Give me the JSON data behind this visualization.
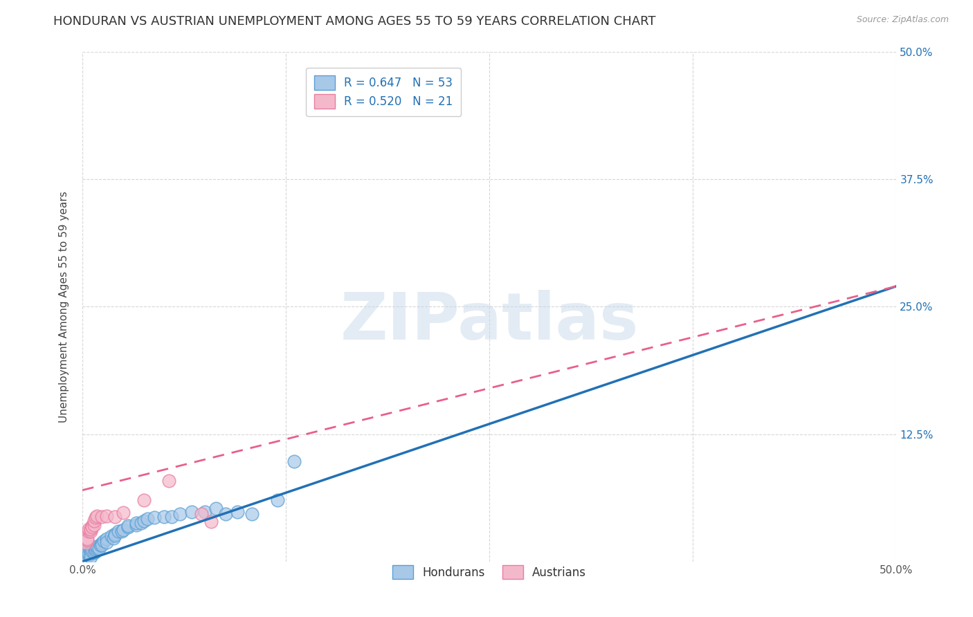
{
  "title": "HONDURAN VS AUSTRIAN UNEMPLOYMENT AMONG AGES 55 TO 59 YEARS CORRELATION CHART",
  "source": "Source: ZipAtlas.com",
  "ylabel": "Unemployment Among Ages 55 to 59 years",
  "xlabel": "",
  "xlim": [
    0.0,
    0.5
  ],
  "ylim": [
    0.0,
    0.5
  ],
  "xticks": [
    0.0,
    0.125,
    0.25,
    0.375,
    0.5
  ],
  "xticklabels": [
    "0.0%",
    "",
    "",
    "",
    "50.0%"
  ],
  "yticks": [
    0.125,
    0.25,
    0.375,
    0.5
  ],
  "yticklabels_right": [
    "12.5%",
    "25.0%",
    "37.5%",
    "50.0%"
  ],
  "honduran_color": "#a8c8e8",
  "austrian_color": "#f4b8cb",
  "honduran_edge_color": "#5a9fd4",
  "austrian_edge_color": "#e87da0",
  "honduran_line_color": "#2171b5",
  "austrian_line_color": "#e8608a",
  "honduran_R": 0.647,
  "honduran_N": 53,
  "austrian_R": 0.52,
  "austrian_N": 21,
  "honduran_scatter": [
    [
      0.0,
      0.005
    ],
    [
      0.0,
      0.01
    ],
    [
      0.0,
      0.005
    ],
    [
      0.002,
      0.005
    ],
    [
      0.002,
      0.008
    ],
    [
      0.003,
      0.008
    ],
    [
      0.003,
      0.01
    ],
    [
      0.003,
      0.005
    ],
    [
      0.004,
      0.007
    ],
    [
      0.004,
      0.008
    ],
    [
      0.005,
      0.01
    ],
    [
      0.005,
      0.008
    ],
    [
      0.005,
      0.005
    ],
    [
      0.006,
      0.012
    ],
    [
      0.006,
      0.01
    ],
    [
      0.007,
      0.009
    ],
    [
      0.008,
      0.01
    ],
    [
      0.008,
      0.012
    ],
    [
      0.009,
      0.013
    ],
    [
      0.009,
      0.015
    ],
    [
      0.01,
      0.013
    ],
    [
      0.011,
      0.016
    ],
    [
      0.012,
      0.018
    ],
    [
      0.012,
      0.016
    ],
    [
      0.013,
      0.02
    ],
    [
      0.015,
      0.022
    ],
    [
      0.015,
      0.019
    ],
    [
      0.018,
      0.025
    ],
    [
      0.019,
      0.023
    ],
    [
      0.02,
      0.027
    ],
    [
      0.02,
      0.026
    ],
    [
      0.022,
      0.03
    ],
    [
      0.024,
      0.03
    ],
    [
      0.025,
      0.031
    ],
    [
      0.028,
      0.034
    ],
    [
      0.028,
      0.035
    ],
    [
      0.033,
      0.036
    ],
    [
      0.033,
      0.038
    ],
    [
      0.036,
      0.038
    ],
    [
      0.038,
      0.04
    ],
    [
      0.04,
      0.042
    ],
    [
      0.044,
      0.043
    ],
    [
      0.05,
      0.044
    ],
    [
      0.055,
      0.044
    ],
    [
      0.06,
      0.047
    ],
    [
      0.067,
      0.049
    ],
    [
      0.075,
      0.049
    ],
    [
      0.082,
      0.052
    ],
    [
      0.088,
      0.047
    ],
    [
      0.095,
      0.049
    ],
    [
      0.104,
      0.047
    ],
    [
      0.12,
      0.06
    ],
    [
      0.13,
      0.098
    ]
  ],
  "austrian_scatter": [
    [
      0.002,
      0.018
    ],
    [
      0.003,
      0.021
    ],
    [
      0.003,
      0.022
    ],
    [
      0.004,
      0.03
    ],
    [
      0.004,
      0.032
    ],
    [
      0.005,
      0.03
    ],
    [
      0.005,
      0.032
    ],
    [
      0.006,
      0.035
    ],
    [
      0.006,
      0.034
    ],
    [
      0.007,
      0.036
    ],
    [
      0.007,
      0.04
    ],
    [
      0.008,
      0.043
    ],
    [
      0.009,
      0.045
    ],
    [
      0.012,
      0.044
    ],
    [
      0.015,
      0.045
    ],
    [
      0.02,
      0.044
    ],
    [
      0.025,
      0.048
    ],
    [
      0.038,
      0.06
    ],
    [
      0.053,
      0.079
    ],
    [
      0.073,
      0.047
    ],
    [
      0.079,
      0.039
    ]
  ],
  "honduran_line": [
    [
      0.0,
      0.0
    ],
    [
      0.5,
      0.27
    ]
  ],
  "austrian_line": [
    [
      0.0,
      0.07
    ],
    [
      0.5,
      0.27
    ]
  ],
  "austrian_line_dashed": true,
  "watermark_text": "ZIPatlas",
  "watermark_color": "#c8daea",
  "background_color": "#ffffff",
  "grid_color": "#cccccc",
  "title_fontsize": 13,
  "axis_fontsize": 11,
  "tick_fontsize": 11,
  "legend_fontsize": 12
}
